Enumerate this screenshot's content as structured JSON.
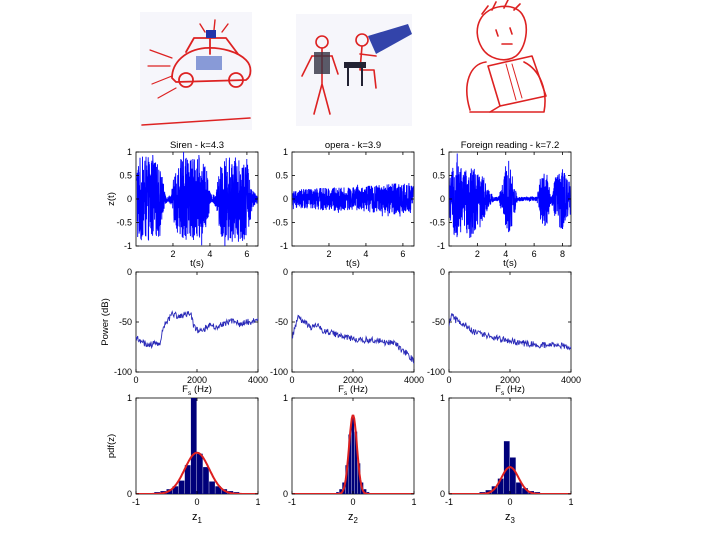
{
  "figure": {
    "sketches": [
      {
        "name": "siren-sketch"
      },
      {
        "name": "opera-sketch"
      },
      {
        "name": "reading-sketch"
      }
    ]
  },
  "colors": {
    "signal": "#0000ff",
    "spectrum": "#2a2ab8",
    "hist": "#00007a",
    "fit": "#dd2020",
    "sketch": "#dd2222",
    "axis": "#000000"
  },
  "chart_data": [
    {
      "type": "line",
      "panel": "signal-siren",
      "title": "Siren - k=4.3",
      "xlabel": "t(s)",
      "ylabel": "z(t)",
      "xlim": [
        0,
        6.6
      ],
      "ylim": [
        -1,
        1
      ],
      "xticks": [
        2,
        4,
        6
      ],
      "yticks": [
        -1,
        -0.5,
        0,
        0.5,
        1
      ],
      "envelope": [
        [
          0.1,
          0.92
        ],
        [
          0.5,
          0.9
        ],
        [
          0.9,
          0.88
        ],
        [
          1.3,
          0.7
        ],
        [
          1.45,
          0.45
        ],
        [
          1.55,
          0.15
        ],
        [
          1.7,
          0.05
        ],
        [
          1.9,
          0.12
        ],
        [
          2.1,
          0.6
        ],
        [
          2.4,
          0.85
        ],
        [
          3.0,
          0.9
        ],
        [
          3.5,
          0.88
        ],
        [
          3.85,
          0.6
        ],
        [
          4.0,
          0.15
        ],
        [
          4.15,
          0.06
        ],
        [
          4.35,
          0.2
        ],
        [
          4.6,
          0.85
        ],
        [
          5.2,
          0.92
        ],
        [
          5.8,
          0.9
        ],
        [
          6.1,
          0.7
        ],
        [
          6.3,
          0.2
        ],
        [
          6.5,
          0.1
        ]
      ]
    },
    {
      "type": "line",
      "panel": "signal-opera",
      "title": "opera - k=3.9",
      "xlabel": "t(s)",
      "ylabel": "",
      "xlim": [
        0,
        6.6
      ],
      "ylim": [
        -1,
        1
      ],
      "xticks": [
        2,
        4,
        6
      ],
      "yticks": [
        -1,
        -0.5,
        0,
        0.5,
        1
      ],
      "envelope": [
        [
          0.1,
          0.2
        ],
        [
          1.0,
          0.22
        ],
        [
          2.0,
          0.25
        ],
        [
          3.0,
          0.25
        ],
        [
          4.0,
          0.28
        ],
        [
          4.8,
          0.3
        ],
        [
          5.3,
          0.35
        ],
        [
          6.0,
          0.33
        ],
        [
          6.5,
          0.3
        ]
      ]
    },
    {
      "type": "line",
      "panel": "signal-foreign-reading",
      "title": "Foreign reading - k=7.2",
      "xlabel": "t(s)",
      "ylabel": "",
      "xlim": [
        0,
        8.6
      ],
      "ylim": [
        -1,
        1
      ],
      "xticks": [
        2,
        4,
        6,
        8
      ],
      "yticks": [
        -1,
        -0.5,
        0,
        0.5,
        1
      ],
      "envelope": [
        [
          0.1,
          0.5
        ],
        [
          0.5,
          0.9
        ],
        [
          1.0,
          0.6
        ],
        [
          1.5,
          0.85
        ],
        [
          2.0,
          0.6
        ],
        [
          2.5,
          0.45
        ],
        [
          2.8,
          0.2
        ],
        [
          3.2,
          0.05
        ],
        [
          3.5,
          0.05
        ],
        [
          3.9,
          0.5
        ],
        [
          4.2,
          0.85
        ],
        [
          4.5,
          0.5
        ],
        [
          4.8,
          0.05
        ],
        [
          5.5,
          0.04
        ],
        [
          6.2,
          0.05
        ],
        [
          6.5,
          0.55
        ],
        [
          6.9,
          0.6
        ],
        [
          7.2,
          0.05
        ],
        [
          7.6,
          0.6
        ],
        [
          8.0,
          0.65
        ],
        [
          8.4,
          0.4
        ]
      ]
    },
    {
      "type": "line",
      "panel": "spectrum-siren",
      "title": "",
      "xlabel": "Fs (Hz)",
      "ylabel": "Power (dB)",
      "xlim": [
        0,
        4000
      ],
      "ylim": [
        -100,
        0
      ],
      "xticks": [
        0,
        2000,
        4000
      ],
      "yticks": [
        -100,
        -50,
        0
      ],
      "points": [
        [
          0,
          -65
        ],
        [
          200,
          -70
        ],
        [
          400,
          -73
        ],
        [
          600,
          -72
        ],
        [
          800,
          -70
        ],
        [
          900,
          -55
        ],
        [
          1000,
          -50
        ],
        [
          1200,
          -42
        ],
        [
          1400,
          -45
        ],
        [
          1600,
          -43
        ],
        [
          1800,
          -42
        ],
        [
          1900,
          -55
        ],
        [
          2000,
          -58
        ],
        [
          2200,
          -58
        ],
        [
          2400,
          -52
        ],
        [
          2600,
          -55
        ],
        [
          2800,
          -52
        ],
        [
          3000,
          -50
        ],
        [
          3200,
          -48
        ],
        [
          3400,
          -52
        ],
        [
          3600,
          -50
        ],
        [
          3800,
          -50
        ],
        [
          4000,
          -48
        ]
      ]
    },
    {
      "type": "line",
      "panel": "spectrum-opera",
      "title": "",
      "xlabel": "Fs (Hz)",
      "ylabel": "",
      "xlim": [
        0,
        4000
      ],
      "ylim": [
        -100,
        0
      ],
      "xticks": [
        0,
        2000,
        4000
      ],
      "yticks": [
        -100,
        -50,
        0
      ],
      "points": [
        [
          0,
          -65
        ],
        [
          200,
          -45
        ],
        [
          400,
          -50
        ],
        [
          600,
          -55
        ],
        [
          800,
          -53
        ],
        [
          1000,
          -58
        ],
        [
          1400,
          -62
        ],
        [
          1800,
          -65
        ],
        [
          2200,
          -68
        ],
        [
          2600,
          -68
        ],
        [
          3000,
          -70
        ],
        [
          3400,
          -72
        ],
        [
          3600,
          -78
        ],
        [
          3800,
          -82
        ],
        [
          4000,
          -90
        ]
      ]
    },
    {
      "type": "line",
      "panel": "spectrum-foreign-reading",
      "title": "",
      "xlabel": "Fs (Hz)",
      "ylabel": "",
      "xlim": [
        0,
        4000
      ],
      "ylim": [
        -100,
        0
      ],
      "xticks": [
        0,
        2000,
        4000
      ],
      "yticks": [
        -100,
        -50,
        0
      ],
      "points": [
        [
          0,
          -55
        ],
        [
          100,
          -40
        ],
        [
          200,
          -48
        ],
        [
          400,
          -50
        ],
        [
          600,
          -55
        ],
        [
          800,
          -60
        ],
        [
          1000,
          -62
        ],
        [
          1400,
          -65
        ],
        [
          1800,
          -68
        ],
        [
          2200,
          -70
        ],
        [
          2600,
          -72
        ],
        [
          3000,
          -73
        ],
        [
          3400,
          -73
        ],
        [
          3800,
          -74
        ],
        [
          4000,
          -75
        ]
      ]
    },
    {
      "type": "bar",
      "panel": "pdf-siren",
      "title": "",
      "xlabel": "z1",
      "ylabel": "pdf(z)",
      "xlim": [
        -1,
        1
      ],
      "ylim": [
        0,
        1
      ],
      "xticks": [
        -1,
        0,
        1
      ],
      "yticks": [
        0,
        1
      ],
      "bin_centers": [
        -0.75,
        -0.65,
        -0.55,
        -0.45,
        -0.35,
        -0.25,
        -0.15,
        -0.05,
        0.05,
        0.15,
        0.25,
        0.35,
        0.45,
        0.55,
        0.65,
        0.75
      ],
      "values": [
        0.01,
        0.02,
        0.03,
        0.05,
        0.08,
        0.14,
        0.3,
        1.0,
        0.42,
        0.28,
        0.13,
        0.08,
        0.05,
        0.03,
        0.02,
        0.01
      ],
      "fit_sigma": 0.2,
      "fit_peak": 0.43
    },
    {
      "type": "bar",
      "panel": "pdf-opera",
      "title": "",
      "xlabel": "z2",
      "ylabel": "",
      "xlim": [
        -1,
        1
      ],
      "ylim": [
        0,
        1
      ],
      "xticks": [
        -1,
        0,
        1
      ],
      "yticks": [
        0,
        1
      ],
      "bin_centers": [
        -0.25,
        -0.2,
        -0.15,
        -0.1,
        -0.05,
        0.0,
        0.05,
        0.1,
        0.15,
        0.2,
        0.25
      ],
      "values": [
        0.02,
        0.05,
        0.12,
        0.3,
        0.62,
        0.8,
        0.65,
        0.32,
        0.12,
        0.05,
        0.02
      ],
      "fit_sigma": 0.065,
      "fit_peak": 0.82
    },
    {
      "type": "bar",
      "panel": "pdf-foreign-reading",
      "title": "",
      "xlabel": "z3",
      "ylabel": "",
      "xlim": [
        -1,
        1
      ],
      "ylim": [
        0,
        1
      ],
      "xticks": [
        -1,
        0,
        1
      ],
      "yticks": [
        0,
        1
      ],
      "bin_centers": [
        -0.55,
        -0.45,
        -0.35,
        -0.25,
        -0.15,
        -0.05,
        0.05,
        0.15,
        0.25,
        0.35,
        0.45,
        0.55
      ],
      "values": [
        0.01,
        0.02,
        0.04,
        0.08,
        0.16,
        0.55,
        0.38,
        0.12,
        0.06,
        0.03,
        0.02,
        0.01
      ],
      "fit_sigma": 0.14,
      "fit_peak": 0.28
    }
  ]
}
